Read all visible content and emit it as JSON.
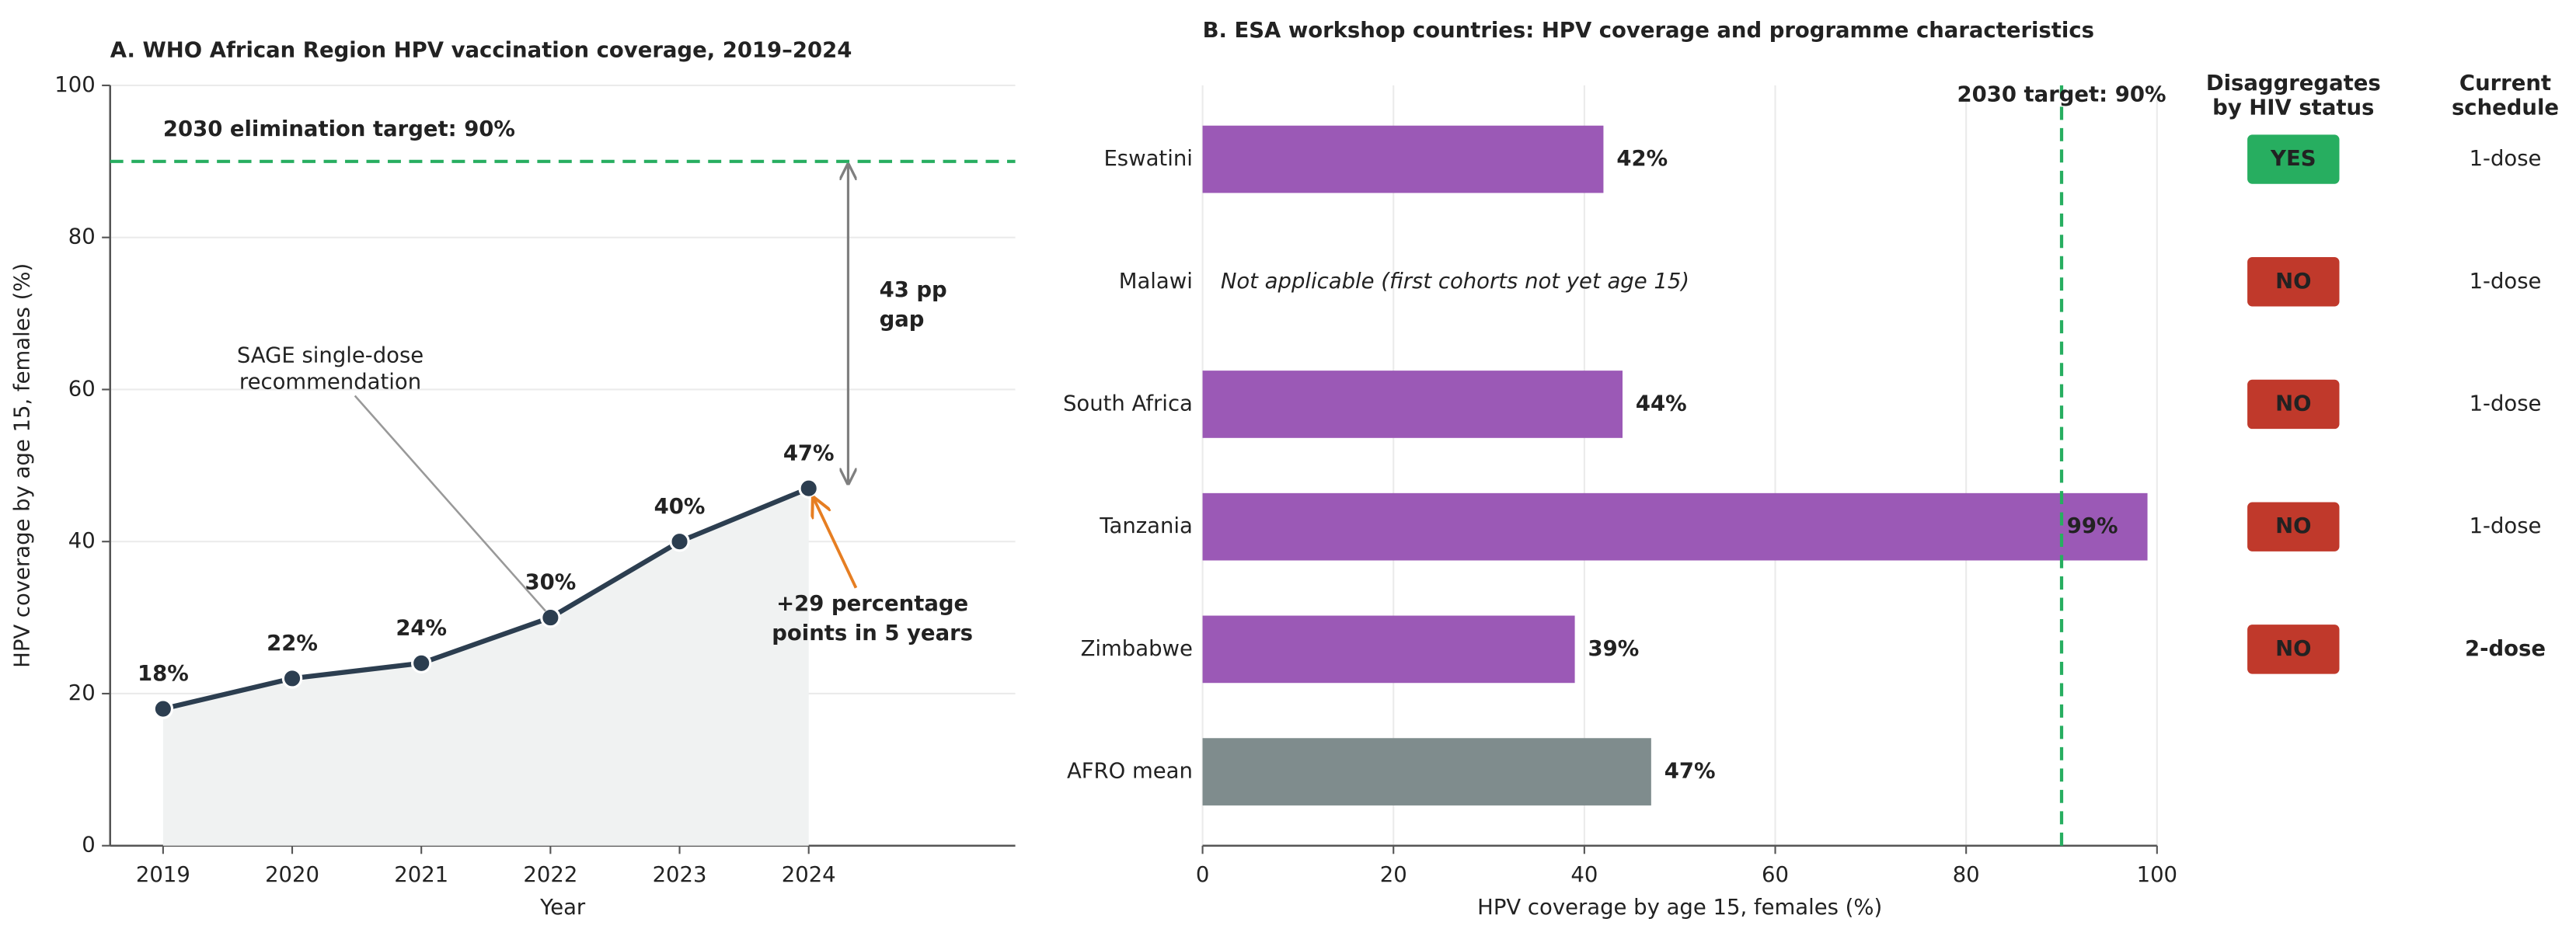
{
  "chart_data": [
    {
      "type": "line",
      "title": "A. WHO African Region HPV vaccination coverage, 2019–2024",
      "x_label": "Year",
      "y_label": "HPV coverage by age 15, females (%)",
      "x": [
        2019,
        2020,
        2021,
        2022,
        2023,
        2024
      ],
      "series": [
        {
          "color": "#2c3e50",
          "values": [
            18,
            22,
            24,
            30,
            40,
            47
          ],
          "value_labels": [
            "18%",
            "22%",
            "24%",
            "30%",
            "40%",
            "47%"
          ]
        }
      ],
      "area_color": "#f0f2f2",
      "xlim": [
        2018.59,
        2025.6
      ],
      "xticks": [
        2019,
        2020,
        2021,
        2022,
        2023,
        2024
      ],
      "ylim": [
        0,
        100
      ],
      "yticks": [
        0,
        20,
        40,
        60,
        80,
        100
      ],
      "grid": true,
      "target": {
        "value": 90,
        "label": "2030 elimination target: 90%",
        "color": "#27ae60"
      },
      "gap": {
        "lines": [
          "43 pp",
          "gap"
        ],
        "color": "#7f7f7f"
      },
      "annotations": [
        {
          "lines": [
            "SAGE single-dose",
            "recommendation"
          ],
          "color": "#666666"
        },
        {
          "lines": [
            "+29 percentage",
            "points in 5 years"
          ],
          "color": "#e67e22"
        }
      ]
    },
    {
      "type": "hbar",
      "title": "B. ESA workshop countries: HPV coverage and programme characteristics",
      "x_label": "HPV coverage by age 15, females (%)",
      "categories": [
        "Eswatini",
        "Malawi",
        "South Africa",
        "Tanzania",
        "Zimbabwe",
        "AFRO mean"
      ],
      "values": [
        42,
        null,
        44,
        99,
        39,
        47
      ],
      "value_labels": [
        "42%",
        null,
        "44%",
        "99%",
        "39%",
        "47%"
      ],
      "colors": [
        "#9b59b6",
        "#9b59b6",
        "#9b59b6",
        "#9b59b6",
        "#9b59b6",
        "#7f8c8d"
      ],
      "notes": [
        null,
        "Not applicable (first cohorts not yet age 15)",
        null,
        null,
        null,
        null
      ],
      "xlim": [
        0,
        100
      ],
      "xticks": [
        0,
        20,
        40,
        60,
        80,
        100
      ],
      "grid": true,
      "target": {
        "value": 90,
        "label": "2030 target: 90%",
        "color": "#27ae60"
      },
      "table": [
        {
          "header": [
            "Disaggregates",
            "by HIV status"
          ],
          "cells": [
            "YES",
            "NO",
            "NO",
            "NO",
            "NO",
            null
          ],
          "colors": [
            "#27ae60",
            "#c0392b",
            "#c0392b",
            "#c0392b",
            "#c0392b",
            null
          ],
          "badge": true
        },
        {
          "header": [
            "Current",
            "schedule"
          ],
          "cells": [
            "1-dose",
            "1-dose",
            "1-dose",
            "1-dose",
            "2-dose",
            null
          ],
          "colors": [
            "#333333",
            "#333333",
            "#333333",
            "#333333",
            "#c0392b",
            null
          ],
          "badge": false
        }
      ]
    }
  ]
}
